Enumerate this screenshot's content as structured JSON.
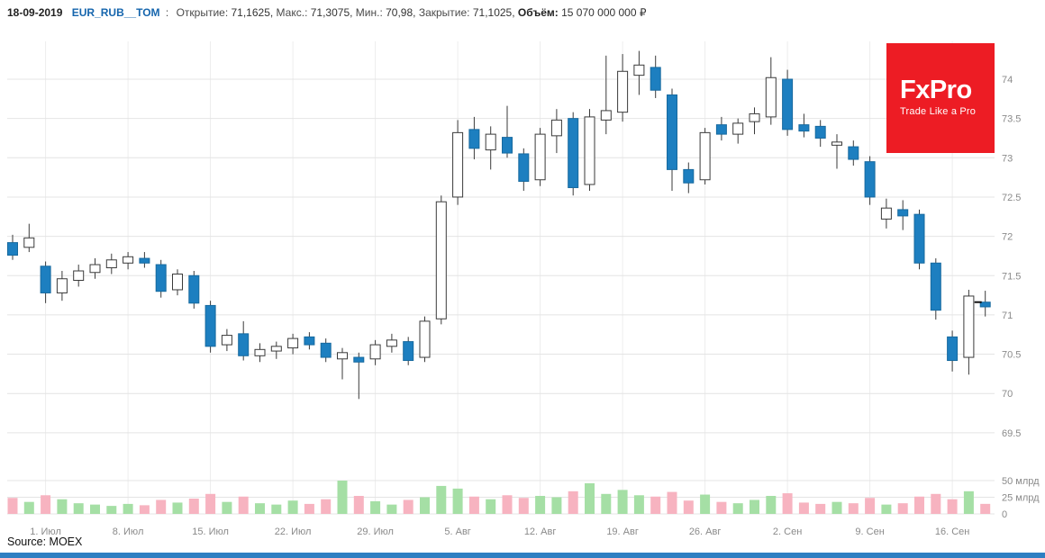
{
  "header": {
    "date": "18-09-2019",
    "ticker": "EUR_RUB__TOM",
    "colon": ":",
    "stats": [
      {
        "label": "Открытие:",
        "value": "71,1625",
        "bold": false
      },
      {
        "label": "Макс.:",
        "value": "71,3075",
        "bold": false
      },
      {
        "label": "Мин.:",
        "value": "70,98",
        "bold": false
      },
      {
        "label": "Закрытие:",
        "value": "71,1025",
        "bold": false
      },
      {
        "label": "Объём:",
        "value": "15 070 000 000 ₽",
        "bold": true
      }
    ]
  },
  "logo": {
    "title": "FxPro",
    "tagline": "Trade Like a Pro",
    "bg_color": "#ed1c24"
  },
  "source": {
    "text": "Source: MOEX"
  },
  "colors": {
    "ticker_blue": "#1565ad",
    "grid_h": "#e4e4e4",
    "grid_v": "#ededed",
    "axis_text": "#8a8a8a",
    "up_fill": "#ffffff",
    "up_stroke": "#3a3a3a",
    "down_fill": "#1d7fc0",
    "down_stroke": "#17699e",
    "wick": "#3a3a3a",
    "volume_up": "#a5dfa5",
    "volume_down": "#f7b3c0",
    "last_open_marker": "#111111",
    "bottom_bar": "#2e7fc2"
  },
  "chart_data": {
    "type": "candlestick",
    "title": "EUR_RUB__TOM daily candles with volume",
    "grid": true,
    "y_axis_position": "right",
    "legend": "none",
    "price_axis_range": [
      69.27,
      74.5
    ],
    "y_ticks_price": [
      {
        "label": "74",
        "value": 74
      },
      {
        "label": "73.5",
        "value": 73.5
      },
      {
        "label": "73",
        "value": 73
      },
      {
        "label": "72.5",
        "value": 72.5
      },
      {
        "label": "72",
        "value": 72
      },
      {
        "label": "71.5",
        "value": 71.5
      },
      {
        "label": "71",
        "value": 71
      },
      {
        "label": "70.5",
        "value": 70.5
      },
      {
        "label": "70",
        "value": 70
      },
      {
        "label": "69.5",
        "value": 69.5
      }
    ],
    "y_ticks_volume": [
      {
        "label": "50 млрд",
        "value": 50
      },
      {
        "label": "25 млрд",
        "value": 25
      },
      {
        "label": "0",
        "value": 0
      }
    ],
    "volume_unit": "млрд ₽",
    "x_tick_labels": [
      "1. Июл",
      "8. Июл",
      "15. Июл",
      "22. Июл",
      "29. Июл",
      "5. Авг",
      "12. Авг",
      "19. Авг",
      "26. Авг",
      "2. Сен",
      "9. Сен",
      "16. Сен"
    ],
    "x_tick_positions": [
      2,
      7,
      12,
      17,
      22,
      27,
      32,
      37,
      42,
      47,
      52,
      57
    ],
    "candles": [
      {
        "d": "27.06",
        "o": 71.92,
        "h": 72.02,
        "l": 71.7,
        "c": 71.76,
        "v": 24
      },
      {
        "d": "28.06",
        "o": 71.86,
        "h": 72.16,
        "l": 71.8,
        "c": 71.98,
        "v": 18
      },
      {
        "d": "01.07",
        "o": 71.62,
        "h": 71.68,
        "l": 71.15,
        "c": 71.28,
        "v": 28
      },
      {
        "d": "02.07",
        "o": 71.28,
        "h": 71.56,
        "l": 71.18,
        "c": 71.46,
        "v": 22
      },
      {
        "d": "03.07",
        "o": 71.44,
        "h": 71.64,
        "l": 71.36,
        "c": 71.56,
        "v": 16
      },
      {
        "d": "04.07",
        "o": 71.54,
        "h": 71.72,
        "l": 71.46,
        "c": 71.64,
        "v": 14
      },
      {
        "d": "05.07",
        "o": 71.6,
        "h": 71.78,
        "l": 71.52,
        "c": 71.7,
        "v": 12
      },
      {
        "d": "08.07",
        "o": 71.66,
        "h": 71.8,
        "l": 71.58,
        "c": 71.74,
        "v": 15
      },
      {
        "d": "09.07",
        "o": 71.72,
        "h": 71.8,
        "l": 71.6,
        "c": 71.66,
        "v": 13
      },
      {
        "d": "10.07",
        "o": 71.64,
        "h": 71.7,
        "l": 71.22,
        "c": 71.3,
        "v": 21
      },
      {
        "d": "11.07",
        "o": 71.32,
        "h": 71.58,
        "l": 71.25,
        "c": 71.52,
        "v": 17
      },
      {
        "d": "12.07",
        "o": 71.5,
        "h": 71.56,
        "l": 71.08,
        "c": 71.15,
        "v": 23
      },
      {
        "d": "15.07",
        "o": 71.12,
        "h": 71.18,
        "l": 70.52,
        "c": 70.6,
        "v": 30
      },
      {
        "d": "16.07",
        "o": 70.62,
        "h": 70.82,
        "l": 70.54,
        "c": 70.74,
        "v": 18
      },
      {
        "d": "17.07",
        "o": 70.76,
        "h": 70.92,
        "l": 70.42,
        "c": 70.48,
        "v": 26
      },
      {
        "d": "18.07",
        "o": 70.48,
        "h": 70.64,
        "l": 70.4,
        "c": 70.56,
        "v": 16
      },
      {
        "d": "19.07",
        "o": 70.54,
        "h": 70.66,
        "l": 70.44,
        "c": 70.6,
        "v": 14
      },
      {
        "d": "22.07",
        "o": 70.58,
        "h": 70.76,
        "l": 70.5,
        "c": 70.7,
        "v": 20
      },
      {
        "d": "23.07",
        "o": 70.72,
        "h": 70.78,
        "l": 70.56,
        "c": 70.62,
        "v": 15
      },
      {
        "d": "24.07",
        "o": 70.64,
        "h": 70.7,
        "l": 70.4,
        "c": 70.46,
        "v": 22
      },
      {
        "d": "25.07",
        "o": 70.44,
        "h": 70.58,
        "l": 70.18,
        "c": 70.52,
        "v": 50
      },
      {
        "d": "26.07",
        "o": 70.46,
        "h": 70.52,
        "l": 69.93,
        "c": 70.4,
        "v": 27
      },
      {
        "d": "29.07",
        "o": 70.44,
        "h": 70.68,
        "l": 70.36,
        "c": 70.62,
        "v": 19
      },
      {
        "d": "30.07",
        "o": 70.6,
        "h": 70.76,
        "l": 70.52,
        "c": 70.68,
        "v": 14
      },
      {
        "d": "31.07",
        "o": 70.66,
        "h": 70.72,
        "l": 70.36,
        "c": 70.42,
        "v": 21
      },
      {
        "d": "01.08",
        "o": 70.46,
        "h": 70.98,
        "l": 70.4,
        "c": 70.92,
        "v": 25
      },
      {
        "d": "02.08",
        "o": 70.95,
        "h": 72.52,
        "l": 70.88,
        "c": 72.44,
        "v": 42
      },
      {
        "d": "05.08",
        "o": 72.5,
        "h": 73.48,
        "l": 72.4,
        "c": 73.32,
        "v": 38
      },
      {
        "d": "06.08",
        "o": 73.36,
        "h": 73.52,
        "l": 72.98,
        "c": 73.12,
        "v": 26
      },
      {
        "d": "07.08",
        "o": 73.1,
        "h": 73.4,
        "l": 72.85,
        "c": 73.3,
        "v": 22
      },
      {
        "d": "08.08",
        "o": 73.26,
        "h": 73.66,
        "l": 73.0,
        "c": 73.06,
        "v": 28
      },
      {
        "d": "09.08",
        "o": 73.05,
        "h": 73.12,
        "l": 72.58,
        "c": 72.7,
        "v": 24
      },
      {
        "d": "12.08",
        "o": 72.72,
        "h": 73.38,
        "l": 72.64,
        "c": 73.3,
        "v": 27
      },
      {
        "d": "13.08",
        "o": 73.28,
        "h": 73.62,
        "l": 73.06,
        "c": 73.48,
        "v": 25
      },
      {
        "d": "14.08",
        "o": 73.5,
        "h": 73.58,
        "l": 72.52,
        "c": 72.62,
        "v": 34
      },
      {
        "d": "15.08",
        "o": 72.66,
        "h": 73.62,
        "l": 72.58,
        "c": 73.52,
        "v": 46
      },
      {
        "d": "16.08",
        "o": 73.48,
        "h": 74.3,
        "l": 73.3,
        "c": 73.6,
        "v": 30
      },
      {
        "d": "19.08",
        "o": 73.58,
        "h": 74.32,
        "l": 73.46,
        "c": 74.1,
        "v": 36
      },
      {
        "d": "20.08",
        "o": 74.05,
        "h": 74.36,
        "l": 73.8,
        "c": 74.18,
        "v": 28
      },
      {
        "d": "21.08",
        "o": 74.15,
        "h": 74.3,
        "l": 73.76,
        "c": 73.86,
        "v": 26
      },
      {
        "d": "22.08",
        "o": 73.8,
        "h": 73.88,
        "l": 72.58,
        "c": 72.85,
        "v": 33
      },
      {
        "d": "23.08",
        "o": 72.85,
        "h": 72.94,
        "l": 72.55,
        "c": 72.68,
        "v": 20
      },
      {
        "d": "26.08",
        "o": 72.72,
        "h": 73.38,
        "l": 72.66,
        "c": 73.32,
        "v": 29
      },
      {
        "d": "27.08",
        "o": 73.42,
        "h": 73.52,
        "l": 73.22,
        "c": 73.3,
        "v": 18
      },
      {
        "d": "28.08",
        "o": 73.3,
        "h": 73.5,
        "l": 73.18,
        "c": 73.44,
        "v": 16
      },
      {
        "d": "29.08",
        "o": 73.46,
        "h": 73.64,
        "l": 73.3,
        "c": 73.56,
        "v": 21
      },
      {
        "d": "30.08",
        "o": 73.52,
        "h": 74.28,
        "l": 73.42,
        "c": 74.02,
        "v": 27
      },
      {
        "d": "02.09",
        "o": 74.0,
        "h": 74.12,
        "l": 73.28,
        "c": 73.36,
        "v": 31
      },
      {
        "d": "03.09",
        "o": 73.42,
        "h": 73.56,
        "l": 73.26,
        "c": 73.34,
        "v": 17
      },
      {
        "d": "04.09",
        "o": 73.4,
        "h": 73.48,
        "l": 73.14,
        "c": 73.25,
        "v": 15
      },
      {
        "d": "05.09",
        "o": 73.16,
        "h": 73.3,
        "l": 72.86,
        "c": 73.2,
        "v": 18
      },
      {
        "d": "06.09",
        "o": 73.14,
        "h": 73.22,
        "l": 72.9,
        "c": 72.98,
        "v": 16
      },
      {
        "d": "09.09",
        "o": 72.95,
        "h": 73.02,
        "l": 72.4,
        "c": 72.5,
        "v": 24
      },
      {
        "d": "10.09",
        "o": 72.22,
        "h": 72.48,
        "l": 72.1,
        "c": 72.36,
        "v": 14
      },
      {
        "d": "11.09",
        "o": 72.34,
        "h": 72.46,
        "l": 72.08,
        "c": 72.26,
        "v": 16
      },
      {
        "d": "12.09",
        "o": 72.28,
        "h": 72.34,
        "l": 71.58,
        "c": 71.66,
        "v": 26
      },
      {
        "d": "13.09",
        "o": 71.66,
        "h": 71.72,
        "l": 70.94,
        "c": 71.06,
        "v": 30
      },
      {
        "d": "16.09",
        "o": 70.72,
        "h": 70.8,
        "l": 70.28,
        "c": 70.42,
        "v": 22
      },
      {
        "d": "17.09",
        "o": 70.46,
        "h": 71.32,
        "l": 70.24,
        "c": 71.24,
        "v": 34
      },
      {
        "d": "18.09",
        "o": 71.1625,
        "h": 71.3075,
        "l": 70.98,
        "c": 71.1025,
        "v": 15.07
      }
    ]
  }
}
